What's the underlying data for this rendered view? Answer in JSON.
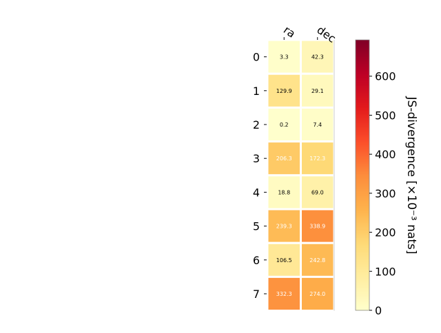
{
  "chart_data": {
    "type": "heatmap",
    "columns": [
      "ra",
      "dec"
    ],
    "rows": [
      "0",
      "1",
      "2",
      "3",
      "4",
      "5",
      "6",
      "7"
    ],
    "values": [
      [
        3.3,
        42.3
      ],
      [
        129.9,
        29.1
      ],
      [
        0.2,
        7.4
      ],
      [
        206.3,
        172.3
      ],
      [
        18.8,
        69.0
      ],
      [
        239.3,
        338.9
      ],
      [
        106.5,
        242.8
      ],
      [
        332.3,
        274.0
      ]
    ],
    "value_labels": [
      [
        "3.3",
        "42.3"
      ],
      [
        "129.9",
        "29.1"
      ],
      [
        "0.2",
        "7.4"
      ],
      [
        "206.3",
        "172.3"
      ],
      [
        "18.8",
        "69.0"
      ],
      [
        "239.3",
        "338.9"
      ],
      [
        "106.5",
        "242.8"
      ],
      [
        "332.3",
        "274.0"
      ]
    ],
    "colorbar": {
      "label": "JS-divergence [×10⁻³ nats]",
      "range": [
        0,
        693
      ],
      "ticks": [
        0,
        100,
        200,
        300,
        400,
        500,
        600
      ],
      "tick_labels": [
        "0",
        "100",
        "200",
        "300",
        "400",
        "500",
        "600"
      ],
      "colormap": "YlOrRd",
      "colors": [
        "#ffffcc",
        "#ffeda0",
        "#fed976",
        "#feb24c",
        "#fd8d3c",
        "#fc4e2a",
        "#e31a1c",
        "#bd0026",
        "#800026"
      ]
    },
    "grid": false
  }
}
